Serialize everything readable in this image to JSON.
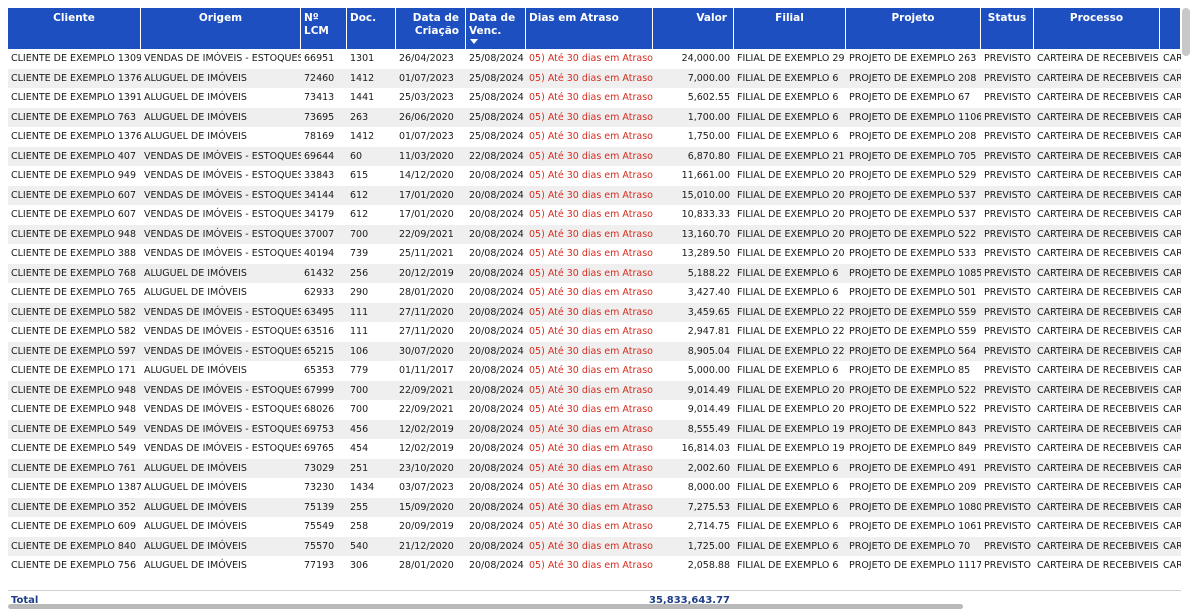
{
  "columns": [
    {
      "label": "Cliente",
      "align": "c"
    },
    {
      "label": "Origem",
      "align": "c"
    },
    {
      "label": "Nº LCM",
      "align": "l"
    },
    {
      "label": "Doc.",
      "align": "l"
    },
    {
      "label": "Data de Criação",
      "align": "r"
    },
    {
      "label": "Data de Venc.",
      "align": "l"
    },
    {
      "label": "Dias em Atraso",
      "align": "l"
    },
    {
      "label": "Valor",
      "align": "r"
    },
    {
      "label": "Filial",
      "align": "c"
    },
    {
      "label": "Projeto",
      "align": "c"
    },
    {
      "label": "Status",
      "align": "c"
    },
    {
      "label": "Processo",
      "align": "c"
    },
    {
      "label": "",
      "align": "l"
    }
  ],
  "atraso_color": "#d62d20",
  "header_color": "#1e4fc1",
  "rows": [
    [
      "CLIENTE DE EXEMPLO 1309",
      "VENDAS DE IMÓVEIS - ESTOQUES",
      "66951",
      "1301",
      "26/04/2023",
      "25/08/2024",
      "05) Até 30 dias em Atraso",
      "24,000.00",
      "FILIAL DE EXEMPLO 29",
      "PROJETO DE EXEMPLO 263",
      "PREVISTO",
      "CARTEIRA DE RECEBIVEIS",
      "CAR"
    ],
    [
      "CLIENTE DE EXEMPLO 1376",
      "ALUGUEL DE IMÓVEIS",
      "72460",
      "1412",
      "01/07/2023",
      "25/08/2024",
      "05) Até 30 dias em Atraso",
      "7,000.00",
      "FILIAL DE EXEMPLO 6",
      "PROJETO DE EXEMPLO 208",
      "PREVISTO",
      "CARTEIRA DE RECEBIVEIS",
      "CAR"
    ],
    [
      "CLIENTE DE EXEMPLO 1391",
      "ALUGUEL DE IMÓVEIS",
      "73413",
      "1441",
      "25/03/2023",
      "25/08/2024",
      "05) Até 30 dias em Atraso",
      "5,602.55",
      "FILIAL DE EXEMPLO 6",
      "PROJETO DE EXEMPLO 67",
      "PREVISTO",
      "CARTEIRA DE RECEBIVEIS",
      "CAR"
    ],
    [
      "CLIENTE DE EXEMPLO 763",
      "ALUGUEL DE IMÓVEIS",
      "73695",
      "263",
      "26/06/2020",
      "25/08/2024",
      "05) Até 30 dias em Atraso",
      "1,700.00",
      "FILIAL DE EXEMPLO 6",
      "PROJETO DE EXEMPLO 1106",
      "PREVISTO",
      "CARTEIRA DE RECEBIVEIS",
      "CAR"
    ],
    [
      "CLIENTE DE EXEMPLO 1376",
      "ALUGUEL DE IMÓVEIS",
      "78169",
      "1412",
      "01/07/2023",
      "25/08/2024",
      "05) Até 30 dias em Atraso",
      "1,750.00",
      "FILIAL DE EXEMPLO 6",
      "PROJETO DE EXEMPLO 208",
      "PREVISTO",
      "CARTEIRA DE RECEBIVEIS",
      "CAR"
    ],
    [
      "CLIENTE DE EXEMPLO 407",
      "VENDAS DE IMÓVEIS - ESTOQUES",
      "69644",
      "60",
      "11/03/2020",
      "22/08/2024",
      "05) Até 30 dias em Atraso",
      "6,870.80",
      "FILIAL DE EXEMPLO 21",
      "PROJETO DE EXEMPLO 705",
      "PREVISTO",
      "CARTEIRA DE RECEBIVEIS",
      "CAR"
    ],
    [
      "CLIENTE DE EXEMPLO 949",
      "VENDAS DE IMÓVEIS - ESTOQUES",
      "33843",
      "615",
      "14/12/2020",
      "20/08/2024",
      "05) Até 30 dias em Atraso",
      "11,661.00",
      "FILIAL DE EXEMPLO 20",
      "PROJETO DE EXEMPLO 529",
      "PREVISTO",
      "CARTEIRA DE RECEBIVEIS",
      "CAR"
    ],
    [
      "CLIENTE DE EXEMPLO 607",
      "VENDAS DE IMÓVEIS - ESTOQUES",
      "34144",
      "612",
      "17/01/2020",
      "20/08/2024",
      "05) Até 30 dias em Atraso",
      "15,010.00",
      "FILIAL DE EXEMPLO 20",
      "PROJETO DE EXEMPLO 537",
      "PREVISTO",
      "CARTEIRA DE RECEBIVEIS",
      "CAR"
    ],
    [
      "CLIENTE DE EXEMPLO 607",
      "VENDAS DE IMÓVEIS - ESTOQUES",
      "34179",
      "612",
      "17/01/2020",
      "20/08/2024",
      "05) Até 30 dias em Atraso",
      "10,833.33",
      "FILIAL DE EXEMPLO 20",
      "PROJETO DE EXEMPLO 537",
      "PREVISTO",
      "CARTEIRA DE RECEBIVEIS",
      "CAR"
    ],
    [
      "CLIENTE DE EXEMPLO 948",
      "VENDAS DE IMÓVEIS - ESTOQUES",
      "37007",
      "700",
      "22/09/2021",
      "20/08/2024",
      "05) Até 30 dias em Atraso",
      "13,160.70",
      "FILIAL DE EXEMPLO 20",
      "PROJETO DE EXEMPLO 522",
      "PREVISTO",
      "CARTEIRA DE RECEBIVEIS",
      "CAR"
    ],
    [
      "CLIENTE DE EXEMPLO 388",
      "VENDAS DE IMÓVEIS - ESTOQUES",
      "40194",
      "739",
      "25/11/2021",
      "20/08/2024",
      "05) Até 30 dias em Atraso",
      "13,289.50",
      "FILIAL DE EXEMPLO 20",
      "PROJETO DE EXEMPLO 533",
      "PREVISTO",
      "CARTEIRA DE RECEBIVEIS",
      "CAR"
    ],
    [
      "CLIENTE DE EXEMPLO 768",
      "ALUGUEL DE IMÓVEIS",
      "61432",
      "256",
      "20/12/2019",
      "20/08/2024",
      "05) Até 30 dias em Atraso",
      "5,188.22",
      "FILIAL DE EXEMPLO 6",
      "PROJETO DE EXEMPLO 1085",
      "PREVISTO",
      "CARTEIRA DE RECEBIVEIS",
      "CAR"
    ],
    [
      "CLIENTE DE EXEMPLO 765",
      "ALUGUEL DE IMÓVEIS",
      "62933",
      "290",
      "28/01/2020",
      "20/08/2024",
      "05) Até 30 dias em Atraso",
      "3,427.40",
      "FILIAL DE EXEMPLO 6",
      "PROJETO DE EXEMPLO 501",
      "PREVISTO",
      "CARTEIRA DE RECEBIVEIS",
      "CAR"
    ],
    [
      "CLIENTE DE EXEMPLO 582",
      "VENDAS DE IMÓVEIS - ESTOQUES",
      "63495",
      "111",
      "27/11/2020",
      "20/08/2024",
      "05) Até 30 dias em Atraso",
      "3,459.65",
      "FILIAL DE EXEMPLO 22",
      "PROJETO DE EXEMPLO 559",
      "PREVISTO",
      "CARTEIRA DE RECEBIVEIS",
      "CAR"
    ],
    [
      "CLIENTE DE EXEMPLO 582",
      "VENDAS DE IMÓVEIS - ESTOQUES",
      "63516",
      "111",
      "27/11/2020",
      "20/08/2024",
      "05) Até 30 dias em Atraso",
      "2,947.81",
      "FILIAL DE EXEMPLO 22",
      "PROJETO DE EXEMPLO 559",
      "PREVISTO",
      "CARTEIRA DE RECEBIVEIS",
      "CAR"
    ],
    [
      "CLIENTE DE EXEMPLO 597",
      "VENDAS DE IMÓVEIS - ESTOQUES",
      "65215",
      "106",
      "30/07/2020",
      "20/08/2024",
      "05) Até 30 dias em Atraso",
      "8,905.04",
      "FILIAL DE EXEMPLO 22",
      "PROJETO DE EXEMPLO 564",
      "PREVISTO",
      "CARTEIRA DE RECEBIVEIS",
      "CAR"
    ],
    [
      "CLIENTE DE EXEMPLO 171",
      "ALUGUEL DE IMÓVEIS",
      "65353",
      "779",
      "01/11/2017",
      "20/08/2024",
      "05) Até 30 dias em Atraso",
      "5,000.00",
      "FILIAL DE EXEMPLO 6",
      "PROJETO DE EXEMPLO 85",
      "PREVISTO",
      "CARTEIRA DE RECEBIVEIS",
      "CAR"
    ],
    [
      "CLIENTE DE EXEMPLO 948",
      "VENDAS DE IMÓVEIS - ESTOQUES",
      "67999",
      "700",
      "22/09/2021",
      "20/08/2024",
      "05) Até 30 dias em Atraso",
      "9,014.49",
      "FILIAL DE EXEMPLO 20",
      "PROJETO DE EXEMPLO 522",
      "PREVISTO",
      "CARTEIRA DE RECEBIVEIS",
      "CAR"
    ],
    [
      "CLIENTE DE EXEMPLO 948",
      "VENDAS DE IMÓVEIS - ESTOQUES",
      "68026",
      "700",
      "22/09/2021",
      "20/08/2024",
      "05) Até 30 dias em Atraso",
      "9,014.49",
      "FILIAL DE EXEMPLO 20",
      "PROJETO DE EXEMPLO 522",
      "PREVISTO",
      "CARTEIRA DE RECEBIVEIS",
      "CAR"
    ],
    [
      "CLIENTE DE EXEMPLO 549",
      "VENDAS DE IMÓVEIS - ESTOQUES",
      "69753",
      "456",
      "12/02/2019",
      "20/08/2024",
      "05) Até 30 dias em Atraso",
      "8,555.49",
      "FILIAL DE EXEMPLO 19",
      "PROJETO DE EXEMPLO 843",
      "PREVISTO",
      "CARTEIRA DE RECEBIVEIS",
      "CAR"
    ],
    [
      "CLIENTE DE EXEMPLO 549",
      "VENDAS DE IMÓVEIS - ESTOQUES",
      "69765",
      "454",
      "12/02/2019",
      "20/08/2024",
      "05) Até 30 dias em Atraso",
      "16,814.03",
      "FILIAL DE EXEMPLO 19",
      "PROJETO DE EXEMPLO 849",
      "PREVISTO",
      "CARTEIRA DE RECEBIVEIS",
      "CAR"
    ],
    [
      "CLIENTE DE EXEMPLO 761",
      "ALUGUEL DE IMÓVEIS",
      "73029",
      "251",
      "23/10/2020",
      "20/08/2024",
      "05) Até 30 dias em Atraso",
      "2,002.60",
      "FILIAL DE EXEMPLO 6",
      "PROJETO DE EXEMPLO 491",
      "PREVISTO",
      "CARTEIRA DE RECEBIVEIS",
      "CAR"
    ],
    [
      "CLIENTE DE EXEMPLO 1387",
      "ALUGUEL DE IMÓVEIS",
      "73230",
      "1434",
      "03/07/2023",
      "20/08/2024",
      "05) Até 30 dias em Atraso",
      "8,000.00",
      "FILIAL DE EXEMPLO 6",
      "PROJETO DE EXEMPLO 209",
      "PREVISTO",
      "CARTEIRA DE RECEBIVEIS",
      "CAR"
    ],
    [
      "CLIENTE DE EXEMPLO 352",
      "ALUGUEL DE IMÓVEIS",
      "75139",
      "255",
      "15/09/2020",
      "20/08/2024",
      "05) Até 30 dias em Atraso",
      "7,275.53",
      "FILIAL DE EXEMPLO 6",
      "PROJETO DE EXEMPLO 1080",
      "PREVISTO",
      "CARTEIRA DE RECEBIVEIS",
      "CAR"
    ],
    [
      "CLIENTE DE EXEMPLO 609",
      "ALUGUEL DE IMÓVEIS",
      "75549",
      "258",
      "20/09/2019",
      "20/08/2024",
      "05) Até 30 dias em Atraso",
      "2,714.75",
      "FILIAL DE EXEMPLO 6",
      "PROJETO DE EXEMPLO 1061",
      "PREVISTO",
      "CARTEIRA DE RECEBIVEIS",
      "CAR"
    ],
    [
      "CLIENTE DE EXEMPLO 840",
      "ALUGUEL DE IMÓVEIS",
      "75570",
      "540",
      "21/12/2020",
      "20/08/2024",
      "05) Até 30 dias em Atraso",
      "1,725.00",
      "FILIAL DE EXEMPLO 6",
      "PROJETO DE EXEMPLO 70",
      "PREVISTO",
      "CARTEIRA DE RECEBIVEIS",
      "CAR"
    ],
    [
      "CLIENTE DE EXEMPLO 756",
      "ALUGUEL DE IMÓVEIS",
      "77193",
      "306",
      "28/01/2020",
      "20/08/2024",
      "05) Até 30 dias em Atraso",
      "2,058.88",
      "FILIAL DE EXEMPLO 6",
      "PROJETO DE EXEMPLO 1117",
      "PREVISTO",
      "CARTEIRA DE RECEBIVEIS",
      "CAR"
    ]
  ],
  "total": {
    "label": "Total",
    "value": "35,833,643.77"
  }
}
